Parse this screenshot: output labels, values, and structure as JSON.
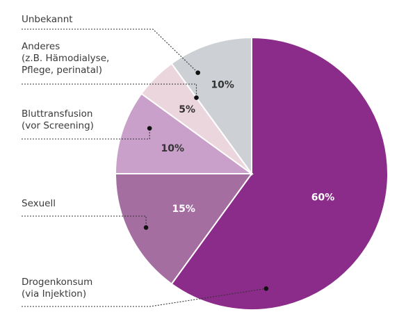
{
  "chart_data": {
    "type": "pie",
    "start_angle_deg": 0,
    "direction": "clockwise",
    "slices": [
      {
        "name": "Drogenkonsum (via Injektion)",
        "label_lines": [
          "Drogenkonsum",
          "(via Injektion)"
        ],
        "value": 60,
        "value_label": "60%",
        "color": "#8b2c8a",
        "text_color": "#ffffff"
      },
      {
        "name": "Sexuell",
        "label_lines": [
          "Sexuell"
        ],
        "value": 15,
        "value_label": "15%",
        "color": "#a56ea1",
        "text_color": "#ffffff"
      },
      {
        "name": "Bluttransfusion (vor Screening)",
        "label_lines": [
          "Bluttransfusion",
          "(vor Screening)"
        ],
        "value": 10,
        "value_label": "10%",
        "color": "#c9a0c9",
        "text_color": "#333333"
      },
      {
        "name": "Anderes (z.B. Hämodialyse, Pflege, perinatal)",
        "label_lines": [
          "Anderes",
          "(z.B. Hämodialyse,",
          "Pflege, perinatal)"
        ],
        "value": 5,
        "value_label": "5%",
        "color": "#ecd6dd",
        "text_color": "#333333"
      },
      {
        "name": "Unbekannt",
        "label_lines": [
          "Unbekannt"
        ],
        "value": 10,
        "value_label": "10%",
        "color": "#cdd0d5",
        "text_color": "#333333"
      }
    ]
  }
}
